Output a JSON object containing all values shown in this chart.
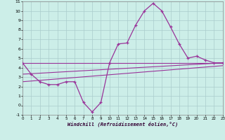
{
  "xlabel": "Windchill (Refroidissement éolien,°C)",
  "background_color": "#cceee8",
  "grid_color": "#aacccc",
  "line_color": "#993399",
  "xlim": [
    0,
    23
  ],
  "ylim": [
    -1,
    11
  ],
  "xticks": [
    0,
    1,
    2,
    3,
    4,
    5,
    6,
    7,
    8,
    9,
    10,
    11,
    12,
    13,
    14,
    15,
    16,
    17,
    18,
    19,
    20,
    21,
    22,
    23
  ],
  "yticks": [
    -1,
    0,
    1,
    2,
    3,
    4,
    5,
    6,
    7,
    8,
    9,
    10,
    11
  ],
  "main_x": [
    0,
    1,
    2,
    3,
    4,
    5,
    6,
    7,
    8,
    9,
    10,
    11,
    12,
    13,
    14,
    15,
    16,
    17,
    18,
    19,
    20,
    21,
    22,
    23
  ],
  "main_y": [
    4.5,
    3.3,
    2.5,
    2.2,
    2.2,
    2.5,
    2.5,
    0.3,
    -0.7,
    0.3,
    4.5,
    6.5,
    6.6,
    8.5,
    10.0,
    10.8,
    10.0,
    8.3,
    6.5,
    5.0,
    5.2,
    4.8,
    4.5,
    4.5
  ],
  "trend1_x": [
    0,
    23
  ],
  "trend1_y": [
    4.5,
    4.5
  ],
  "trend2_x": [
    0,
    23
  ],
  "trend2_y": [
    3.3,
    4.5
  ],
  "trend3_x": [
    0,
    23
  ],
  "trend3_y": [
    2.5,
    4.2
  ]
}
